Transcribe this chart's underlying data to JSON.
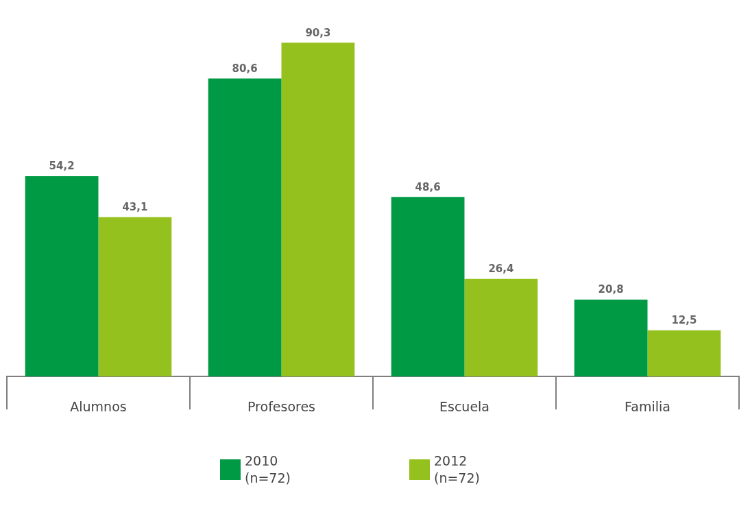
{
  "chart_data": {
    "type": "bar",
    "categories": [
      "Alumnos",
      "Profesores",
      "Escuela",
      "Familia"
    ],
    "series": [
      {
        "name": "2010\n(n=72)",
        "color": "#009a44",
        "values": [
          54.2,
          80.6,
          48.6,
          20.8
        ],
        "value_labels": [
          "54,2",
          "80,6",
          "48,6",
          "20,8"
        ]
      },
      {
        "name": "2012\n(n=72)",
        "color": "#95c11f",
        "values": [
          43.1,
          90.3,
          26.4,
          12.5
        ],
        "value_labels": [
          "43,1",
          "90,3",
          "26,4",
          "12,5"
        ]
      }
    ],
    "tick_labels": "x",
    "grid": false,
    "legend": "bottom"
  }
}
